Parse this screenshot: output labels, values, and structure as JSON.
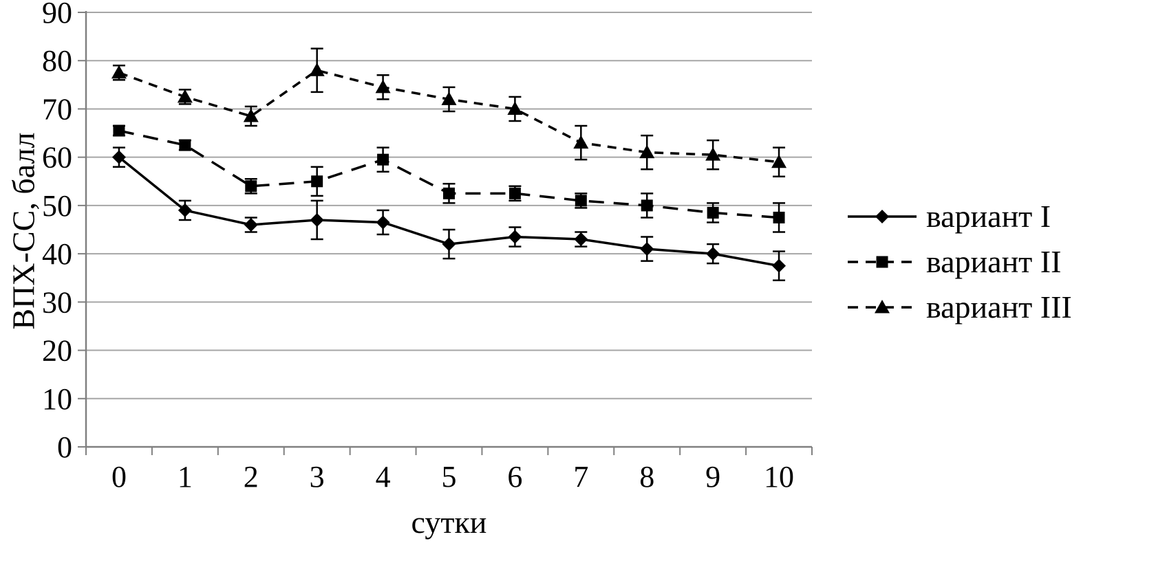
{
  "chart_data": {
    "type": "line",
    "xlabel": "сутки",
    "ylabel": "ВПХ-СС, балл",
    "x": [
      0,
      1,
      2,
      3,
      4,
      5,
      6,
      7,
      8,
      9,
      10
    ],
    "ylim": [
      0,
      90
    ],
    "ytick_step": 10,
    "grid": true,
    "legend_position": "right",
    "error_bars": true,
    "series": [
      {
        "name": "вариант I",
        "marker": "diamond",
        "dash": "none",
        "values": [
          60,
          49,
          46,
          47,
          46.5,
          42,
          43.5,
          43,
          41,
          40,
          37.5
        ],
        "errors": [
          2,
          2,
          1.5,
          4,
          2.5,
          3,
          2,
          1.5,
          2.5,
          2,
          3
        ]
      },
      {
        "name": "вариант II",
        "marker": "square",
        "dash": "long",
        "values": [
          65.5,
          62.5,
          54,
          55,
          59.5,
          52.5,
          52.5,
          51,
          50,
          48.5,
          47.5
        ],
        "errors": [
          1,
          1,
          1.5,
          3,
          2.5,
          2,
          1.5,
          1.5,
          2.5,
          2,
          3
        ]
      },
      {
        "name": "вариант III",
        "marker": "triangle",
        "dash": "short",
        "values": [
          77.5,
          72.5,
          68.5,
          78,
          74.5,
          72,
          70,
          63,
          61,
          60.5,
          59
        ],
        "errors": [
          1.5,
          1.5,
          2,
          4.5,
          2.5,
          2.5,
          2.5,
          3.5,
          3.5,
          3,
          3
        ]
      }
    ]
  },
  "colors": {
    "background": "#ffffff",
    "line": "#000000",
    "grid": "#a6a6a6",
    "axis": "#808080",
    "text": "#000000"
  }
}
